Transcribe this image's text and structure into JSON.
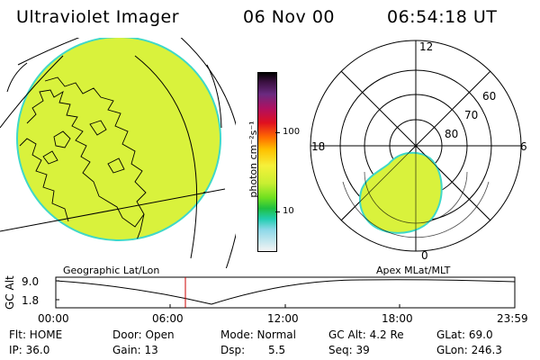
{
  "header": {
    "instrument": "Ultraviolet Imager",
    "date": "06 Nov 00",
    "time": "06:54:18 UT"
  },
  "colors": {
    "aurora_fill": "#d9f23c",
    "aurora_edge": "#3fd8c8",
    "marker": "#cc0000"
  },
  "colorbar": {
    "unit": "photon cm⁻²s⁻¹",
    "ticks": [
      "100",
      "10"
    ]
  },
  "panels": {
    "left_label": "Geographic Lat/Lon",
    "right_label": "Apex MLat/MLT",
    "polar": {
      "mlt_labels": {
        "top": "12",
        "left": "18",
        "right": "6",
        "bottom": "0"
      },
      "lat_labels": [
        "60",
        "70",
        "80"
      ]
    }
  },
  "altitude_plot": {
    "ylabel": "GC Alt",
    "ymax": "9.0",
    "ymin": "1.8",
    "time_ticks": [
      "00:00",
      "06:00",
      "12:00",
      "18:00",
      "23:59"
    ]
  },
  "info": {
    "flt": "Flt: HOME",
    "ip": "IP: 36.0",
    "door": "Door: Open",
    "gain": "Gain: 13",
    "mode": "Mode: Normal",
    "dsp_label": "Dsp:",
    "dsp_value": "5.5",
    "gc_alt": "GC Alt: 4.2 Re",
    "seq": "Seq: 39",
    "glat": "GLat:  69.0",
    "glon": "GLon: 246.3"
  }
}
